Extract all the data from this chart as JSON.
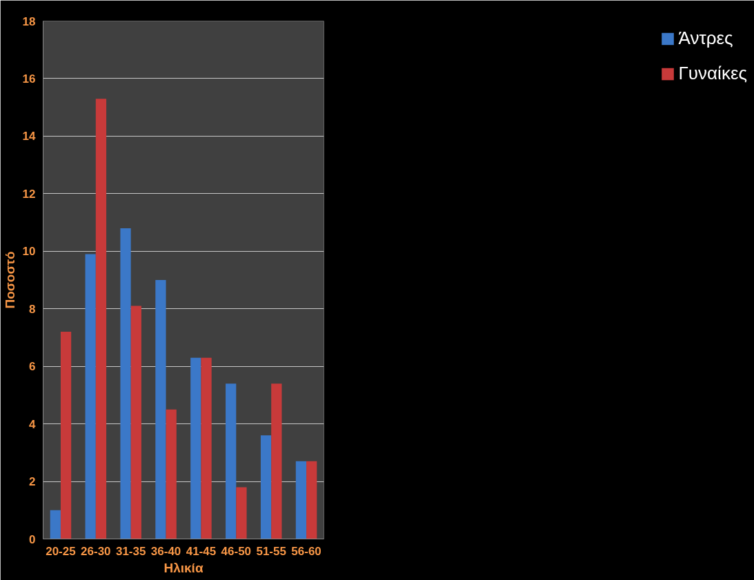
{
  "chart_data": {
    "type": "bar",
    "xlabel": "Ηλικία",
    "ylabel": "Ποσοστό",
    "categories": [
      "20-25",
      "26-30",
      "31-35",
      "36-40",
      "41-45",
      "46-50",
      "51-55",
      "56-60"
    ],
    "series": [
      {
        "name": "Άντρες",
        "color": "#3b78c8",
        "values": [
          1.0,
          9.9,
          10.8,
          9.0,
          6.3,
          5.4,
          3.6,
          2.7
        ]
      },
      {
        "name": "Γυναίκες",
        "color": "#c83a3a",
        "values": [
          7.2,
          15.3,
          8.1,
          4.5,
          6.3,
          1.8,
          5.4,
          2.7
        ]
      }
    ],
    "ylim": [
      0,
      18
    ],
    "yticks": [
      0,
      2,
      4,
      6,
      8,
      10,
      12,
      14,
      16,
      18
    ],
    "grid": "y",
    "legend": "right"
  }
}
